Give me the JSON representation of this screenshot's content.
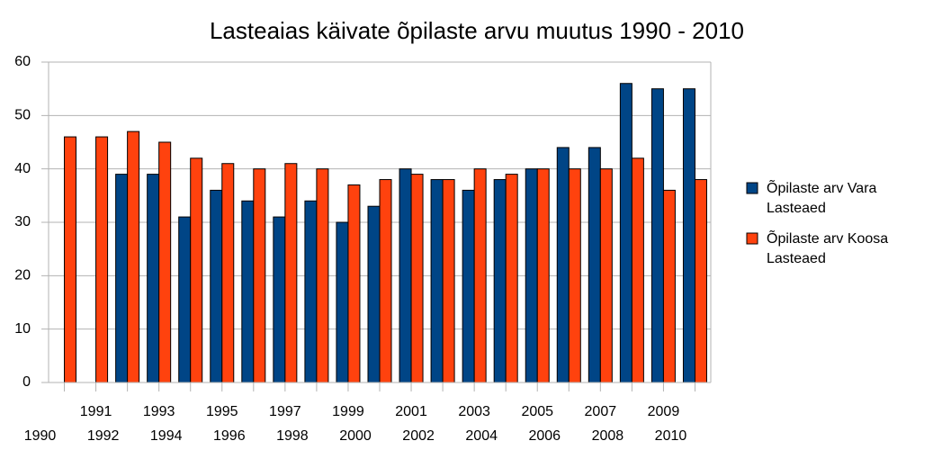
{
  "chart_data": {
    "type": "bar",
    "title": "Lasteaias käivate õpilaste arvu muutus 1990 - 2010",
    "categories": [
      "1990",
      "1991",
      "1992",
      "1993",
      "1994",
      "1995",
      "1996",
      "1997",
      "1998",
      "1999",
      "2000",
      "2001",
      "2002",
      "2003",
      "2004",
      "2005",
      "2006",
      "2007",
      "2008",
      "2009",
      "2010"
    ],
    "series": [
      {
        "name": "Õpilaste arv Vara Lasteaed",
        "color": "#004586",
        "values": [
          null,
          null,
          39,
          39,
          31,
          36,
          34,
          31,
          34,
          30,
          33,
          40,
          38,
          36,
          38,
          40,
          44,
          44,
          56,
          55,
          55
        ]
      },
      {
        "name": "Õpilaste arv Koosa Lasteaed",
        "color": "#ff420e",
        "values": [
          46,
          46,
          47,
          45,
          42,
          41,
          40,
          41,
          40,
          37,
          38,
          39,
          38,
          40,
          39,
          40,
          40,
          40,
          42,
          36,
          38
        ]
      }
    ],
    "ylim": [
      0,
      60
    ],
    "yticks": [
      0,
      10,
      20,
      30,
      40,
      50,
      60
    ],
    "grid": true,
    "legend": "right"
  }
}
